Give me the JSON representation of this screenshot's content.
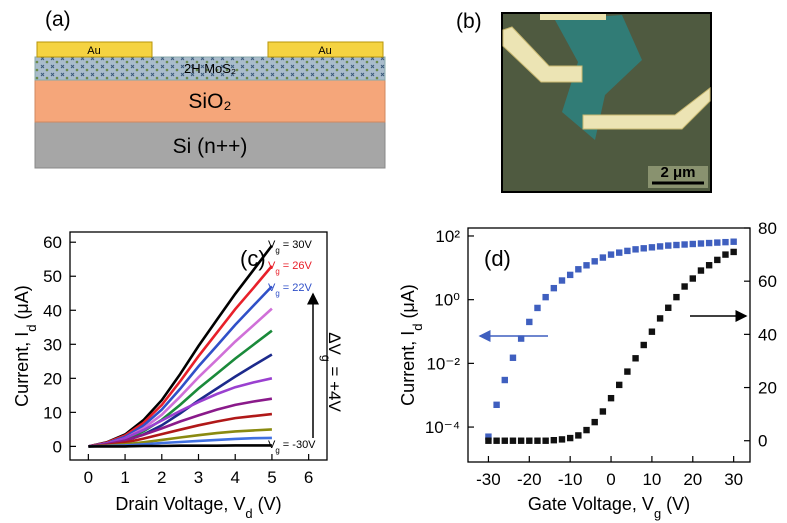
{
  "panels": {
    "a": {
      "label": "(a)",
      "au_left": "Au",
      "au_right": "Au",
      "mos2": "2H MoS₂",
      "sio2": "SiO₂",
      "si": "Si (n++)"
    },
    "b": {
      "label": "(b)",
      "scale_bar": "2 μm"
    }
  },
  "chart_data": [
    {
      "type": "line",
      "panel_label": "(c)",
      "x_label": {
        "text": "Drain Voltage, V",
        "sub": "d",
        "after": " (V)"
      },
      "y_label": {
        "text": "Current, I",
        "sub": "d",
        "after": " (μA)"
      },
      "x": [
        0,
        0.5,
        1,
        1.5,
        2,
        2.5,
        3,
        3.5,
        4,
        4.5,
        5
      ],
      "xlim": [
        -0.5,
        6.5
      ],
      "xticks": [
        0,
        1,
        2,
        3,
        4,
        5,
        6
      ],
      "ylim": [
        -4,
        63
      ],
      "yticks": [
        0,
        10,
        20,
        30,
        40,
        50,
        60
      ],
      "series": [
        {
          "color": "#000000",
          "values": [
            0,
            1.2,
            3.5,
            7.7,
            13.6,
            21.2,
            29.5,
            37.2,
            44.8,
            51.9,
            59
          ]
        },
        {
          "color": "#e8202a",
          "values": [
            0,
            1.1,
            3.2,
            6.9,
            12.2,
            19.1,
            26.5,
            33.4,
            40.3,
            46.6,
            53
          ]
        },
        {
          "color": "#3050c8",
          "values": [
            0,
            0.9,
            2.8,
            6.1,
            10.8,
            16.9,
            23.5,
            29.6,
            35.7,
            41.4,
            47
          ]
        },
        {
          "color": "#d070d8",
          "values": [
            0,
            0.8,
            2.4,
            5.3,
            9.3,
            14.6,
            20.3,
            25.5,
            30.8,
            35.6,
            40.5
          ]
        },
        {
          "color": "#1a8a3a",
          "values": [
            0,
            0.7,
            2,
            4.4,
            7.8,
            12.2,
            17,
            21.4,
            25.8,
            29.9,
            34
          ]
        },
        {
          "color": "#1c2a8c",
          "values": [
            0,
            0.5,
            1.6,
            3.5,
            6.2,
            9.7,
            13.5,
            17,
            20.5,
            23.8,
            27
          ]
        },
        {
          "color": "#9a40d0",
          "values": [
            0,
            0.8,
            2.4,
            4.8,
            7.6,
            10.4,
            13,
            15.4,
            17.4,
            18.8,
            20
          ]
        },
        {
          "color": "#8a1a8a",
          "values": [
            0,
            0.6,
            1.7,
            3.4,
            5.3,
            7.3,
            9.1,
            10.8,
            12.2,
            13.2,
            14
          ]
        },
        {
          "color": "#b01818",
          "values": [
            0,
            0.4,
            1.1,
            2.3,
            3.6,
            4.9,
            6.2,
            7.3,
            8.3,
            8.9,
            9.5
          ]
        },
        {
          "color": "#8a8a10",
          "values": [
            0,
            0.2,
            0.6,
            1.2,
            1.9,
            2.6,
            3.3,
            3.9,
            4.4,
            4.7,
            5
          ]
        },
        {
          "color": "#4070e0",
          "values": [
            0,
            0.1,
            0.3,
            0.6,
            1,
            1.3,
            1.6,
            1.9,
            2.2,
            2.4,
            2.5
          ]
        },
        {
          "color": "#000000",
          "values": [
            0,
            0,
            0,
            0.1,
            0.1,
            0.2,
            0.2,
            0.2,
            0.3,
            0.3,
            0.3
          ]
        }
      ],
      "annotations": [
        {
          "text": "V",
          "sub": "g",
          "after": " = 30V",
          "color": "#000000"
        },
        {
          "text": "V",
          "sub": "g",
          "after": " = 26V",
          "color": "#e8202a"
        },
        {
          "text": "V",
          "sub": "g",
          "after": " = 22V",
          "color": "#3050c8"
        },
        {
          "text": "V",
          "sub": "g",
          "after": " = -30V",
          "color": "#000000"
        }
      ],
      "step_label": {
        "text": "ΔV",
        "sub": "g",
        "after": " = +4V"
      }
    },
    {
      "type": "scatter",
      "panel_label": "(d)",
      "x_label": {
        "text": "Gate Voltage, V",
        "sub": "g",
        "after": " (V)"
      },
      "y_label": {
        "text": "Current, I",
        "sub": "d",
        "after": " (μA)"
      },
      "x": [
        -30,
        -28,
        -26,
        -24,
        -22,
        -20,
        -18,
        -16,
        -14,
        -12,
        -10,
        -8,
        -6,
        -4,
        -2,
        0,
        2,
        4,
        6,
        8,
        10,
        12,
        14,
        16,
        18,
        20,
        22,
        24,
        26,
        28,
        30
      ],
      "xlim": [
        -35,
        34
      ],
      "xticks": [
        -30,
        -20,
        -10,
        0,
        10,
        20,
        30
      ],
      "yscale": "log",
      "ylim": [
        8e-06,
        178
      ],
      "yticks": [
        {
          "value": 0.0001,
          "label": "10⁻⁴"
        },
        {
          "value": 0.01,
          "label": "10⁻²"
        },
        {
          "value": 1,
          "label": "10⁰"
        },
        {
          "value": 100,
          "label": "10²"
        }
      ],
      "y2lim": [
        -8,
        80
      ],
      "y2ticks": [
        0,
        20,
        40,
        60,
        80
      ],
      "series": [
        {
          "color": "#3f5fbf",
          "values": [
            5e-05,
            0.0005,
            0.003,
            0.015,
            0.06,
            0.2,
            0.55,
            1.2,
            2.3,
            4,
            6,
            9,
            12,
            16,
            21,
            26,
            30,
            34,
            38,
            41,
            44,
            47,
            50,
            52,
            54,
            56,
            58,
            60,
            62,
            64,
            66
          ]
        },
        {
          "color": "#111111",
          "axis": "y2",
          "values": [
            0,
            0,
            0,
            0,
            0,
            0,
            0,
            0,
            0.2,
            0.5,
            1,
            2,
            4,
            7,
            11,
            16,
            21,
            26,
            31,
            36,
            41,
            46,
            50,
            54,
            58,
            61,
            64,
            66,
            68,
            70,
            71
          ]
        }
      ]
    }
  ]
}
